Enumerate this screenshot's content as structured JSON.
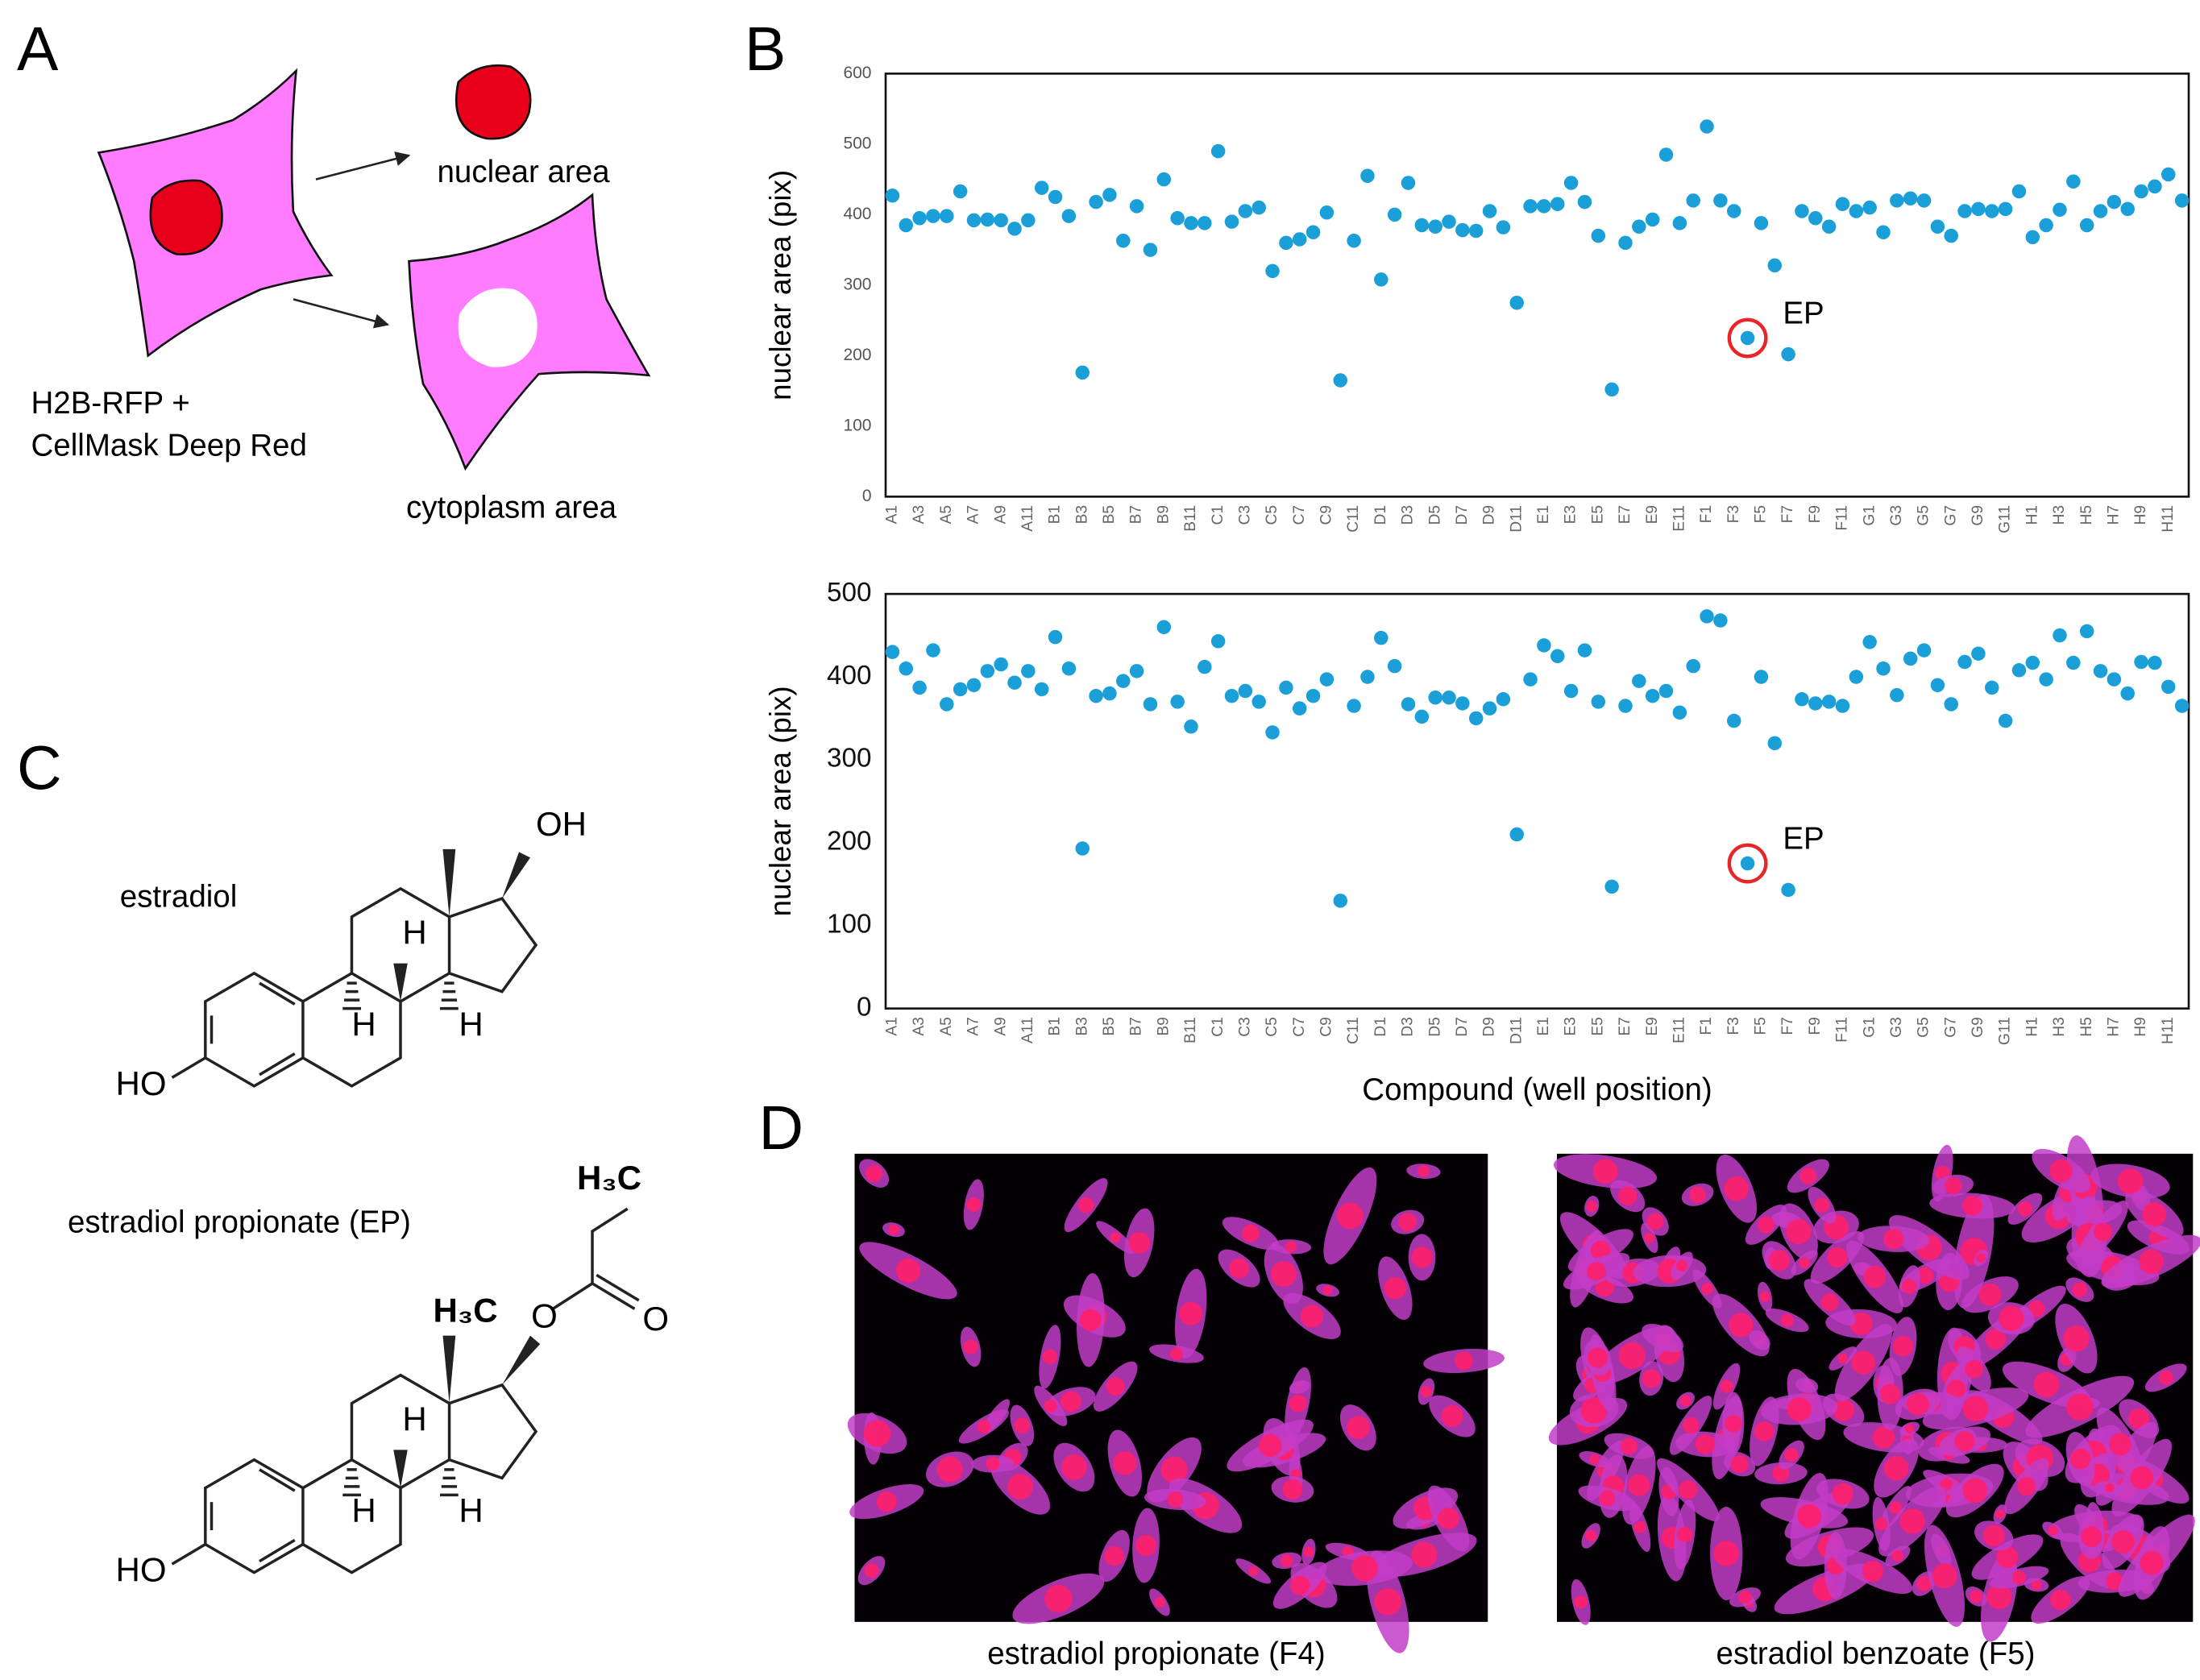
{
  "panel_labels": [
    "A",
    "B",
    "C",
    "D"
  ],
  "panel_a": {
    "nucleus_label": "nuclear area",
    "cell_label": [
      "H2B-RFP +",
      "CellMask Deep Red"
    ],
    "cytoplasm_label": "cytoplasm area"
  },
  "chart_data": [
    {
      "type": "scatter",
      "ylabel": "nuclear area (pix)",
      "color": "#1a9fd9",
      "categories": [
        "A1",
        null,
        "A3",
        null,
        "A5",
        null,
        "A7",
        null,
        "A9",
        null,
        "A11",
        null,
        "B1",
        null,
        "B3",
        null,
        "B5",
        null,
        "B7",
        null,
        "B9",
        null,
        "B11",
        null,
        "C1",
        null,
        "C3",
        null,
        "C5",
        null,
        "C7",
        null,
        "C9",
        null,
        "C11",
        null,
        "D1",
        null,
        "D3",
        null,
        "D5",
        null,
        "D7",
        null,
        "D9",
        null,
        "D11",
        null,
        "E1",
        null,
        "E3",
        null,
        "E5",
        null,
        "E7",
        null,
        "E9",
        null,
        "E11",
        null,
        "F1",
        null,
        "F3",
        null,
        "F5",
        null,
        "F7",
        null,
        "F9",
        null,
        "F11",
        null,
        "G1",
        null,
        "G3",
        null,
        "G5",
        null,
        "G7",
        null,
        "G9",
        null,
        "G11",
        null,
        "H1",
        null,
        "H3",
        null,
        "H5",
        null,
        "H7",
        null,
        "H9",
        null,
        "H11",
        null
      ],
      "values": [
        427,
        385,
        395,
        398,
        398,
        433,
        392,
        393,
        392,
        380,
        392,
        438,
        425,
        398,
        176,
        418,
        428,
        363,
        412,
        350,
        450,
        395,
        388,
        388,
        490,
        390,
        405,
        410,
        320,
        360,
        365,
        375,
        403,
        165,
        363,
        455,
        308,
        400,
        445,
        385,
        383,
        390,
        378,
        377,
        405,
        382,
        275,
        412,
        412,
        415,
        445,
        418,
        370,
        152,
        360,
        383,
        393,
        485,
        388,
        420,
        525,
        420,
        405,
        225,
        388,
        328,
        202,
        405,
        395,
        383,
        415,
        405,
        410,
        375,
        420,
        423,
        420,
        383,
        370,
        405,
        408,
        405,
        408,
        433,
        368,
        385,
        407,
        447,
        385,
        405,
        418,
        408,
        433,
        440,
        457,
        420
      ],
      "ylim": [
        0,
        600
      ],
      "yticks": [
        0,
        100,
        200,
        300,
        400,
        500,
        600
      ],
      "annotations": [
        {
          "text": "EP",
          "index": 63,
          "color": "#e8262a"
        }
      ]
    },
    {
      "type": "scatter",
      "ylabel": "nuclear area (pix)",
      "xlabel": "Compound (well position)",
      "color": "#1a9fd9",
      "categories": [
        "A1",
        null,
        "A3",
        null,
        "A5",
        null,
        "A7",
        null,
        "A9",
        null,
        "A11",
        null,
        "B1",
        null,
        "B3",
        null,
        "B5",
        null,
        "B7",
        null,
        "B9",
        null,
        "B11",
        null,
        "C1",
        null,
        "C3",
        null,
        "C5",
        null,
        "C7",
        null,
        "C9",
        null,
        "C11",
        null,
        "D1",
        null,
        "D3",
        null,
        "D5",
        null,
        "D7",
        null,
        "D9",
        null,
        "D11",
        null,
        "E1",
        null,
        "E3",
        null,
        "E5",
        null,
        "E7",
        null,
        "E9",
        null,
        "E11",
        null,
        "F1",
        null,
        "F3",
        null,
        "F5",
        null,
        "F7",
        null,
        "F9",
        null,
        "F11",
        null,
        "G1",
        null,
        "G3",
        null,
        "G5",
        null,
        "G7",
        null,
        "G9",
        null,
        "G11",
        null,
        "H1",
        null,
        "H3",
        null,
        "H5",
        null,
        "H7",
        null,
        "H9",
        null,
        "H11",
        null
      ],
      "values": [
        430,
        410,
        387,
        432,
        367,
        385,
        390,
        407,
        415,
        393,
        407,
        385,
        448,
        410,
        193,
        377,
        380,
        395,
        407,
        367,
        460,
        370,
        340,
        412,
        443,
        377,
        383,
        370,
        333,
        387,
        362,
        377,
        397,
        130,
        365,
        400,
        447,
        413,
        367,
        352,
        375,
        375,
        368,
        350,
        362,
        373,
        210,
        397,
        438,
        425,
        383,
        432,
        370,
        147,
        365,
        395,
        377,
        383,
        357,
        413,
        473,
        468,
        347,
        175,
        400,
        320,
        143,
        373,
        368,
        370,
        365,
        400,
        442,
        410,
        378,
        422,
        432,
        390,
        367,
        418,
        428,
        387,
        347,
        408,
        417,
        397,
        450,
        417,
        455,
        407,
        397,
        380,
        418,
        417,
        388,
        365
      ],
      "ylim": [
        0,
        500
      ],
      "yticks": [
        0,
        100,
        200,
        300,
        400,
        500
      ],
      "annotations": [
        {
          "text": "EP",
          "index": 63,
          "color": "#e8262a"
        }
      ]
    }
  ],
  "panel_c": {
    "estradiol": {
      "name": "estradiol",
      "atoms": [
        "OH",
        "H",
        "H",
        "H",
        "HO"
      ]
    },
    "ep": {
      "name": "estradiol propionate (EP)",
      "atoms": [
        "H₃C",
        "O",
        "O",
        "H₃C",
        "H",
        "H",
        "H",
        "HO"
      ]
    }
  },
  "panel_d": {
    "captions": [
      "estradiol propionate (F4)",
      "estradiol benzoate (F5)"
    ]
  }
}
